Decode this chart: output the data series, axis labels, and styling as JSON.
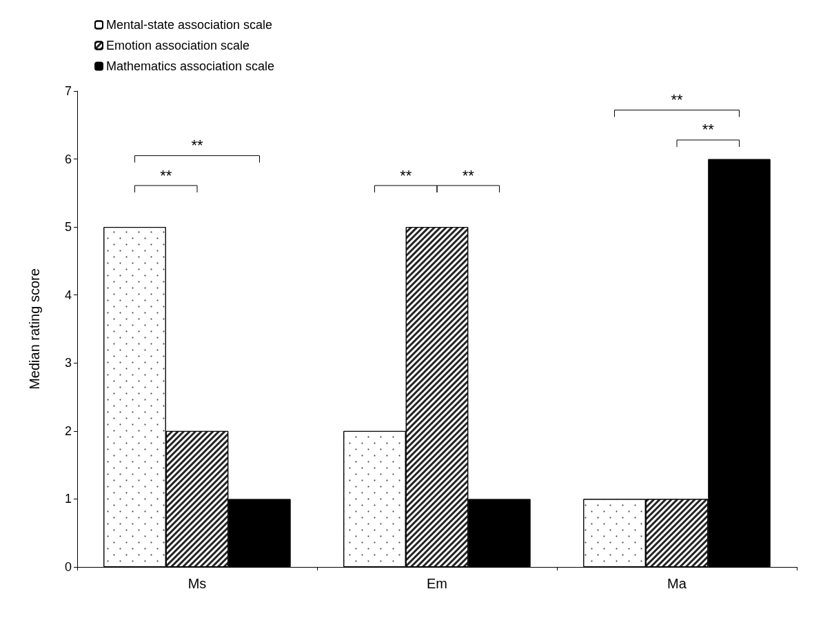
{
  "chart_data": {
    "type": "bar",
    "ylabel": "Median rating score",
    "categories": [
      "Ms",
      "Em",
      "Ma"
    ],
    "series": [
      {
        "name": "Mental-state association scale",
        "color": "#ffffff",
        "values": [
          5,
          2,
          1
        ]
      },
      {
        "name": "Emotion association scale",
        "color": "#ffffff",
        "values": [
          2,
          5,
          1
        ]
      },
      {
        "name": "Mathematics association scale",
        "color": "#000000",
        "values": [
          1,
          1,
          6
        ]
      }
    ],
    "ylim": [
      0,
      7
    ],
    "yticks": [
      0,
      1,
      2,
      3,
      4,
      5,
      6,
      7
    ],
    "grid": false,
    "legend": "top left",
    "annotations": [
      "**",
      "**",
      "**",
      "**",
      "**",
      "**"
    ]
  }
}
